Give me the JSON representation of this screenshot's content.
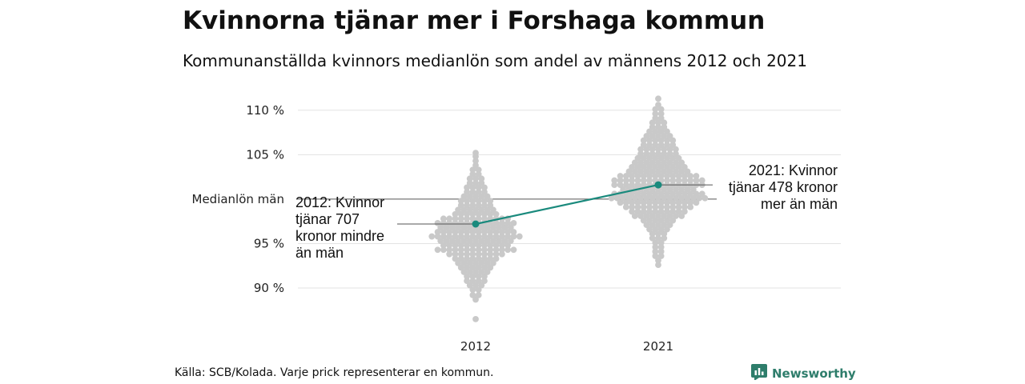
{
  "header": {
    "title": "Kvinnorna tjänar mer i Forshaga kommun",
    "subtitle": "Kommunanställda kvinnors medianlön som andel av männens 2012 och 2021"
  },
  "footer": {
    "source": "Källa: SCB/Kolada. Varje prick representerar en kommun.",
    "brand": "Newsworthy"
  },
  "colors": {
    "dots": "#c9c9c9",
    "highlight": "#1a8a7d",
    "grid": "#e3e3e3",
    "reference": "#555555",
    "brand": "#2e7d6b"
  },
  "icons": {
    "brand": "bar-chart-icon"
  },
  "chart_data": {
    "type": "scatter",
    "subtype": "beeswarm",
    "categories": [
      "2012",
      "2021"
    ],
    "y_ticks": [
      {
        "value": 110,
        "label": "110 %"
      },
      {
        "value": 105,
        "label": "105 %"
      },
      {
        "value": 95,
        "label": "95 %"
      },
      {
        "value": 90,
        "label": "90 %"
      }
    ],
    "ylim": [
      85.5,
      112.5
    ],
    "grid": true,
    "reference_line": {
      "value": 100,
      "label": "Medianlön män"
    },
    "highlight": {
      "values": [
        97.2,
        101.6
      ],
      "annotations": [
        [
          "2012: Kvinnor",
          "tjänar 707",
          "kronor mindre",
          "än män"
        ],
        [
          "2021: Kvinnor",
          "tjänar 478 kronor",
          "mer än män"
        ]
      ]
    },
    "series": [
      {
        "category": "2012",
        "summary": {
          "min": 86.5,
          "max": 105.2
        },
        "bins": [
          [
            86.5,
            1
          ],
          [
            88.7,
            1
          ],
          [
            89.2,
            2
          ],
          [
            89.8,
            2
          ],
          [
            90.3,
            3
          ],
          [
            90.8,
            4
          ],
          [
            91.3,
            4
          ],
          [
            91.8,
            5
          ],
          [
            92.3,
            6
          ],
          [
            92.8,
            7
          ],
          [
            93.3,
            8
          ],
          [
            93.8,
            10
          ],
          [
            94.3,
            14
          ],
          [
            94.8,
            12
          ],
          [
            95.3,
            13
          ],
          [
            95.8,
            16
          ],
          [
            96.3,
            14
          ],
          [
            96.8,
            13
          ],
          [
            97.3,
            14
          ],
          [
            97.8,
            12
          ],
          [
            98.3,
            8
          ],
          [
            98.8,
            7
          ],
          [
            99.3,
            6
          ],
          [
            99.8,
            6
          ],
          [
            100.3,
            5
          ],
          [
            100.8,
            4
          ],
          [
            101.3,
            4
          ],
          [
            101.8,
            3
          ],
          [
            102.3,
            3
          ],
          [
            102.8,
            2
          ],
          [
            103.3,
            2
          ],
          [
            103.8,
            1
          ],
          [
            104.3,
            1
          ],
          [
            104.8,
            1
          ],
          [
            105.2,
            1
          ]
        ]
      },
      {
        "category": "2021",
        "summary": {
          "min": 92.5,
          "max": 111.3
        },
        "bins": [
          [
            92.6,
            1
          ],
          [
            93.1,
            1
          ],
          [
            93.6,
            2
          ],
          [
            94.1,
            2
          ],
          [
            94.6,
            2
          ],
          [
            95.1,
            2
          ],
          [
            95.6,
            3
          ],
          [
            96.1,
            3
          ],
          [
            96.6,
            4
          ],
          [
            97.1,
            5
          ],
          [
            97.6,
            6
          ],
          [
            98.1,
            9
          ],
          [
            98.6,
            10
          ],
          [
            99.1,
            12
          ],
          [
            99.6,
            14
          ],
          [
            100.1,
            17
          ],
          [
            100.6,
            16
          ],
          [
            101.1,
            13
          ],
          [
            101.6,
            16
          ],
          [
            102.1,
            16
          ],
          [
            102.6,
            14
          ],
          [
            103.1,
            11
          ],
          [
            103.6,
            10
          ],
          [
            104.1,
            9
          ],
          [
            104.6,
            8
          ],
          [
            105.1,
            7
          ],
          [
            105.6,
            7
          ],
          [
            106.1,
            6
          ],
          [
            106.6,
            6
          ],
          [
            107.1,
            5
          ],
          [
            107.6,
            4
          ],
          [
            108.1,
            3
          ],
          [
            108.6,
            3
          ],
          [
            109.1,
            2
          ],
          [
            109.6,
            2
          ],
          [
            110.1,
            2
          ],
          [
            110.6,
            1
          ],
          [
            111.3,
            1
          ]
        ]
      }
    ]
  }
}
